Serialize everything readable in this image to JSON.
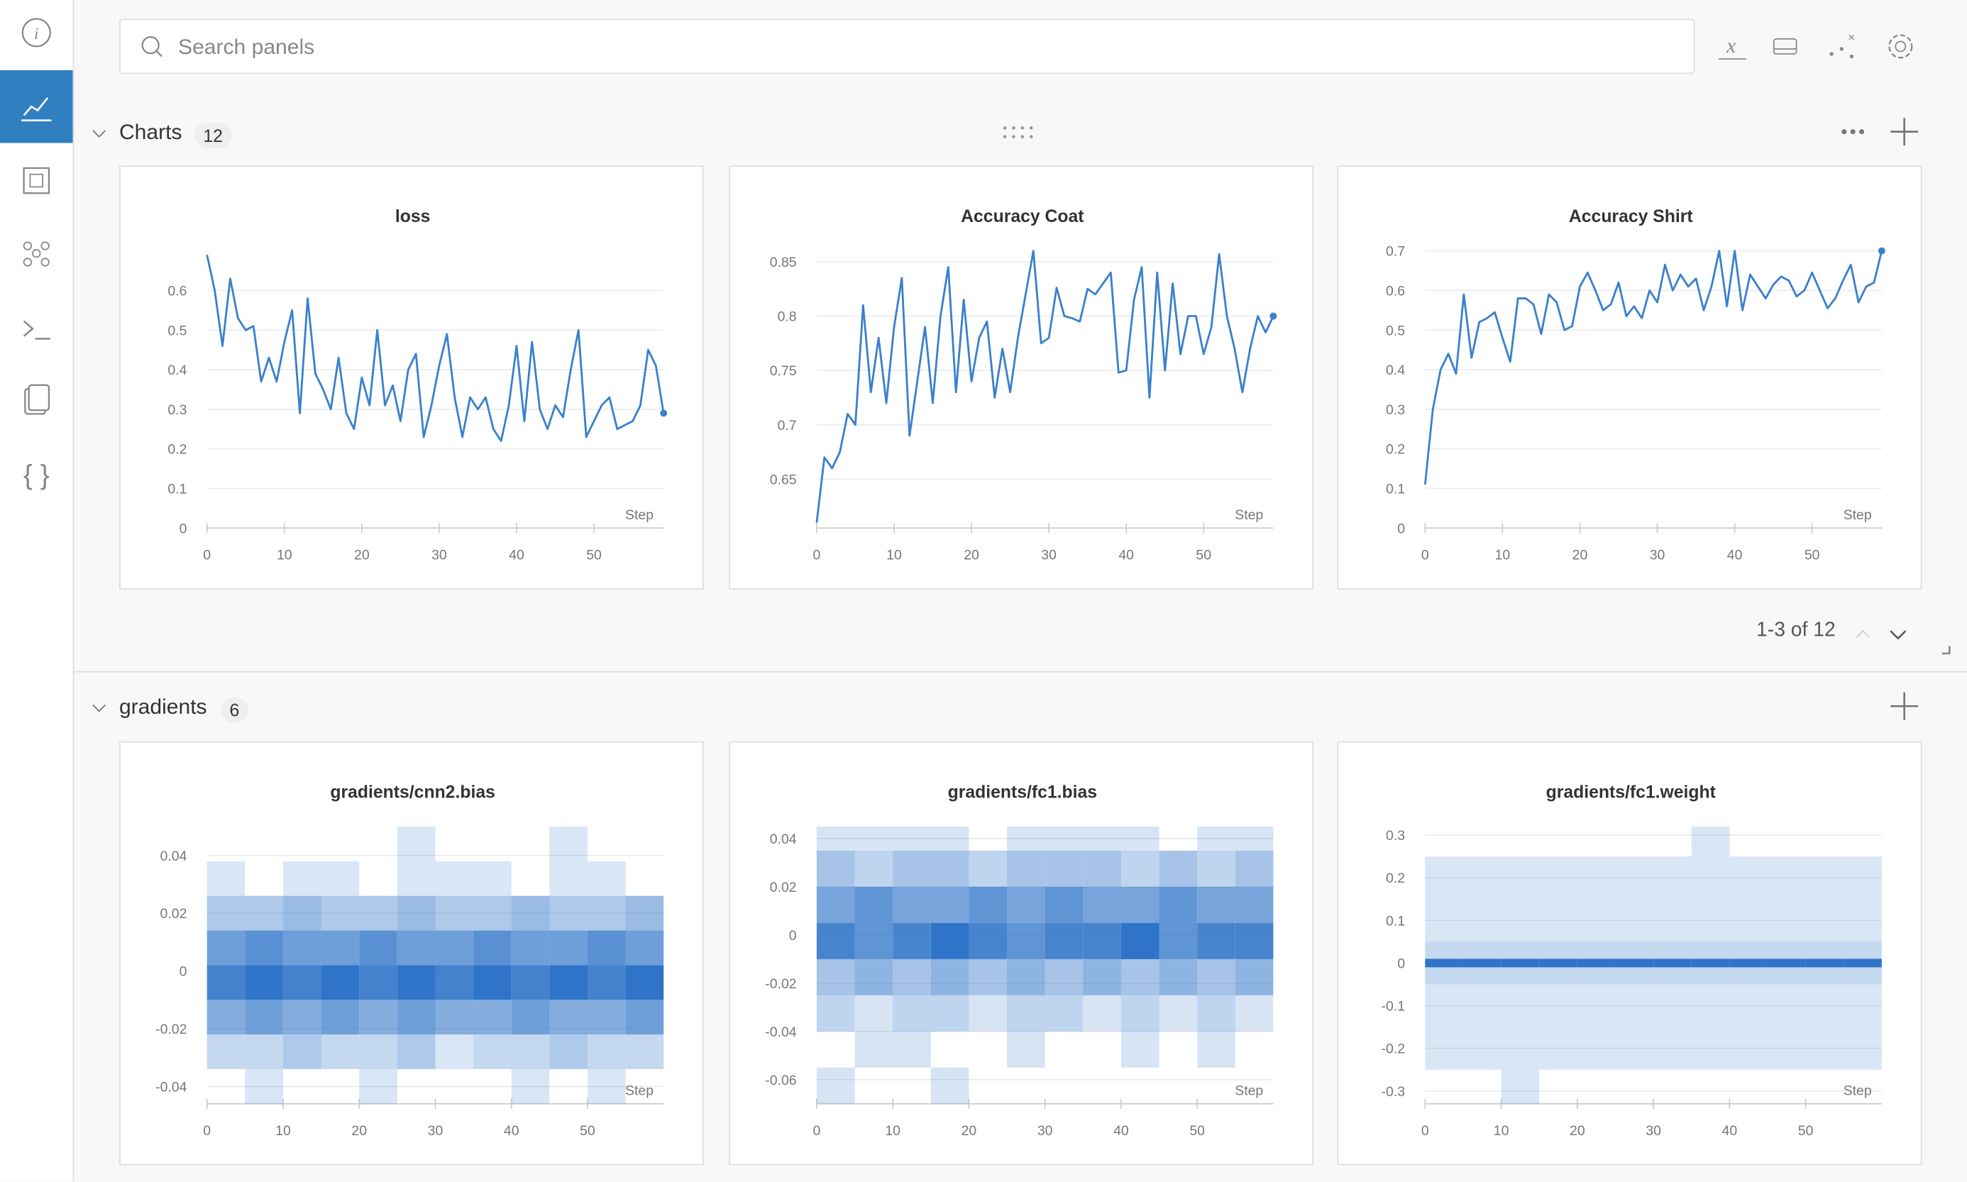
{
  "search_placeholder": "Search panels",
  "sections": [
    {
      "title": "Charts",
      "count": 12,
      "pagination": "1-3 of 12"
    },
    {
      "title": "gradients",
      "count": 6
    }
  ],
  "chart_data": [
    {
      "type": "line",
      "title": "loss",
      "x_label": "Step",
      "color": "#3a80cc",
      "grid": true,
      "x": [
        0,
        1,
        2,
        3,
        4,
        5,
        6,
        7,
        8,
        9,
        10,
        11,
        12,
        13,
        14,
        15,
        16,
        17,
        18,
        19,
        20,
        21,
        22,
        23,
        24,
        25,
        26,
        27,
        28,
        29,
        30,
        31,
        32,
        33,
        34,
        35,
        36,
        37,
        38,
        39,
        40,
        41,
        42,
        43,
        44,
        45,
        46,
        47,
        48,
        49,
        50,
        51,
        52,
        53,
        54,
        55,
        56,
        57,
        58,
        59
      ],
      "values": [
        0.69,
        0.6,
        0.46,
        0.63,
        0.53,
        0.5,
        0.51,
        0.37,
        0.43,
        0.37,
        0.47,
        0.55,
        0.29,
        0.58,
        0.39,
        0.35,
        0.3,
        0.43,
        0.29,
        0.25,
        0.38,
        0.31,
        0.5,
        0.31,
        0.36,
        0.27,
        0.4,
        0.44,
        0.23,
        0.31,
        0.41,
        0.49,
        0.33,
        0.23,
        0.33,
        0.3,
        0.33,
        0.25,
        0.22,
        0.31,
        0.46,
        0.27,
        0.47,
        0.3,
        0.25,
        0.31,
        0.28,
        0.4,
        0.5,
        0.23,
        0.27,
        0.31,
        0.33,
        0.25,
        0.26,
        0.27,
        0.31,
        0.45,
        0.41,
        0.29
      ],
      "xlim": [
        0,
        59
      ],
      "xticks": [
        0,
        10,
        20,
        30,
        40,
        50
      ],
      "ylim": [
        0,
        0.7
      ],
      "yticks": [
        0,
        0.1,
        0.2,
        0.3,
        0.4,
        0.5,
        0.6
      ]
    },
    {
      "type": "line",
      "title": "Accuracy Coat",
      "x_label": "Step",
      "color": "#3a80cc",
      "grid": true,
      "x": [
        0,
        1,
        2,
        3,
        4,
        5,
        6,
        7,
        8,
        9,
        10,
        11,
        12,
        13,
        14,
        15,
        16,
        17,
        18,
        19,
        20,
        21,
        22,
        23,
        24,
        25,
        26,
        27,
        28,
        29,
        30,
        31,
        32,
        33,
        34,
        35,
        36,
        37,
        38,
        39,
        40,
        41,
        42,
        43,
        44,
        45,
        46,
        47,
        48,
        49,
        50,
        51,
        52,
        53,
        54,
        55,
        56,
        57,
        58,
        59
      ],
      "values": [
        0.61,
        0.67,
        0.66,
        0.675,
        0.71,
        0.7,
        0.81,
        0.73,
        0.78,
        0.72,
        0.79,
        0.835,
        0.69,
        0.74,
        0.79,
        0.72,
        0.8,
        0.845,
        0.73,
        0.815,
        0.74,
        0.78,
        0.795,
        0.725,
        0.77,
        0.73,
        0.78,
        0.82,
        0.86,
        0.775,
        0.78,
        0.826,
        0.8,
        0.798,
        0.795,
        0.825,
        0.82,
        0.83,
        0.84,
        0.748,
        0.75,
        0.815,
        0.845,
        0.725,
        0.84,
        0.75,
        0.83,
        0.765,
        0.8,
        0.8,
        0.765,
        0.79,
        0.857,
        0.8,
        0.77,
        0.73,
        0.77,
        0.8,
        0.785,
        0.8
      ],
      "xlim": [
        0,
        59
      ],
      "xticks": [
        0,
        10,
        20,
        30,
        40,
        50
      ],
      "ylim": [
        0.605,
        0.86
      ],
      "yticks": [
        0.65,
        0.7,
        0.75,
        0.8,
        0.85
      ]
    },
    {
      "type": "line",
      "title": "Accuracy Shirt",
      "x_label": "Step",
      "color": "#3a80cc",
      "grid": true,
      "x": [
        0,
        1,
        2,
        3,
        4,
        5,
        6,
        7,
        8,
        9,
        10,
        11,
        12,
        13,
        14,
        15,
        16,
        17,
        18,
        19,
        20,
        21,
        22,
        23,
        24,
        25,
        26,
        27,
        28,
        29,
        30,
        31,
        32,
        33,
        34,
        35,
        36,
        37,
        38,
        39,
        40,
        41,
        42,
        43,
        44,
        45,
        46,
        47,
        48,
        49,
        50,
        51,
        52,
        53,
        54,
        55,
        56,
        57,
        58,
        59
      ],
      "values": [
        0.11,
        0.3,
        0.4,
        0.44,
        0.39,
        0.59,
        0.43,
        0.52,
        0.53,
        0.545,
        0.48,
        0.42,
        0.58,
        0.58,
        0.565,
        0.49,
        0.59,
        0.57,
        0.5,
        0.51,
        0.61,
        0.645,
        0.6,
        0.55,
        0.565,
        0.62,
        0.535,
        0.56,
        0.53,
        0.6,
        0.57,
        0.665,
        0.6,
        0.64,
        0.61,
        0.63,
        0.55,
        0.61,
        0.7,
        0.56,
        0.7,
        0.55,
        0.64,
        0.61,
        0.58,
        0.615,
        0.635,
        0.625,
        0.585,
        0.6,
        0.645,
        0.6,
        0.555,
        0.58,
        0.625,
        0.665,
        0.57,
        0.61,
        0.62,
        0.7
      ],
      "xlim": [
        0,
        59
      ],
      "xticks": [
        0,
        10,
        20,
        30,
        40,
        50
      ],
      "ylim": [
        0,
        0.7
      ],
      "yticks": [
        0,
        0.1,
        0.2,
        0.3,
        0.4,
        0.5,
        0.6,
        0.7
      ]
    },
    {
      "type": "heatmap",
      "title": "gradients/cnn2.bias",
      "x_label": "Step",
      "color": "#2f74c8",
      "grid": true,
      "x_edges": [
        0,
        5,
        10,
        15,
        20,
        25,
        30,
        35,
        40,
        45,
        50,
        55,
        60
      ],
      "y_edges": [
        -0.046,
        -0.034,
        -0.022,
        -0.01,
        0.002,
        0.014,
        0.026,
        0.038,
        0.05
      ],
      "counts": [
        [
          0,
          1,
          0,
          0,
          1,
          0,
          0,
          0,
          1,
          0,
          1,
          0
        ],
        [
          2,
          2,
          3,
          2,
          2,
          3,
          1,
          2,
          2,
          3,
          2,
          2
        ],
        [
          5,
          6,
          5,
          6,
          5,
          6,
          5,
          5,
          6,
          5,
          5,
          6
        ],
        [
          8,
          9,
          8,
          9,
          8,
          9,
          8,
          9,
          8,
          9,
          8,
          9
        ],
        [
          6,
          7,
          6,
          6,
          7,
          6,
          6,
          7,
          6,
          6,
          7,
          6
        ],
        [
          3,
          3,
          4,
          3,
          3,
          4,
          3,
          3,
          4,
          3,
          3,
          4
        ],
        [
          1,
          0,
          1,
          1,
          0,
          1,
          1,
          1,
          0,
          1,
          1,
          0
        ],
        [
          0,
          0,
          0,
          0,
          0,
          1,
          0,
          0,
          0,
          1,
          0,
          0
        ]
      ],
      "xlim": [
        0,
        60
      ],
      "xticks": [
        0,
        10,
        20,
        30,
        40,
        50
      ],
      "ylim": [
        -0.046,
        0.05
      ],
      "yticks": [
        -0.04,
        -0.02,
        0,
        0.02,
        0.04
      ]
    },
    {
      "type": "heatmap",
      "title": "gradients/fc1.bias",
      "x_label": "Step",
      "color": "#2f74c8",
      "grid": true,
      "x_edges": [
        0,
        5,
        10,
        15,
        20,
        25,
        30,
        35,
        40,
        45,
        50,
        55,
        60
      ],
      "y_edges": [
        -0.07,
        -0.055,
        -0.04,
        -0.025,
        -0.01,
        0.005,
        0.02,
        0.035,
        0.045
      ],
      "counts": [
        [
          1,
          0,
          0,
          1,
          0,
          0,
          0,
          0,
          0,
          0,
          0,
          0
        ],
        [
          0,
          1,
          1,
          0,
          0,
          1,
          0,
          0,
          1,
          0,
          1,
          0
        ],
        [
          2,
          1,
          2,
          2,
          1,
          2,
          2,
          1,
          2,
          1,
          2,
          1
        ],
        [
          3,
          4,
          3,
          4,
          3,
          4,
          3,
          4,
          3,
          4,
          3,
          4
        ],
        [
          7,
          6,
          7,
          8,
          7,
          6,
          7,
          7,
          8,
          6,
          7,
          7
        ],
        [
          5,
          6,
          5,
          5,
          6,
          5,
          6,
          5,
          5,
          6,
          5,
          5
        ],
        [
          3,
          2,
          3,
          3,
          2,
          3,
          3,
          3,
          2,
          3,
          2,
          3
        ],
        [
          1,
          1,
          1,
          1,
          0,
          1,
          1,
          1,
          1,
          0,
          1,
          1
        ]
      ],
      "xlim": [
        0,
        60
      ],
      "xticks": [
        0,
        10,
        20,
        30,
        40,
        50
      ],
      "ylim": [
        -0.07,
        0.045
      ],
      "yticks": [
        -0.06,
        -0.04,
        -0.02,
        0,
        0.02,
        0.04
      ]
    },
    {
      "type": "heatmap",
      "title": "gradients/fc1.weight",
      "x_label": "Step",
      "color": "#2f74c8",
      "grid": true,
      "x_edges": [
        0,
        5,
        10,
        15,
        20,
        25,
        30,
        35,
        40,
        45,
        50,
        55,
        60
      ],
      "y_edges": [
        -0.33,
        -0.25,
        -0.15,
        -0.05,
        -0.01,
        0.01,
        0.05,
        0.15,
        0.25,
        0.32
      ],
      "counts": [
        [
          0,
          0,
          1,
          0,
          0,
          0,
          0,
          0,
          0,
          0,
          0,
          0
        ],
        [
          1,
          1,
          1,
          1,
          1,
          1,
          1,
          1,
          1,
          1,
          1,
          1
        ],
        [
          1,
          1,
          1,
          1,
          1,
          1,
          1,
          1,
          1,
          1,
          1,
          1
        ],
        [
          2,
          2,
          2,
          2,
          2,
          2,
          2,
          2,
          2,
          2,
          2,
          2
        ],
        [
          9,
          9,
          9,
          9,
          9,
          9,
          9,
          9,
          9,
          9,
          9,
          9
        ],
        [
          2,
          2,
          2,
          2,
          2,
          2,
          2,
          2,
          2,
          2,
          2,
          2
        ],
        [
          1,
          1,
          1,
          1,
          1,
          1,
          1,
          1,
          1,
          1,
          1,
          1
        ],
        [
          1,
          1,
          1,
          1,
          1,
          1,
          1,
          1,
          1,
          1,
          1,
          1
        ],
        [
          0,
          0,
          0,
          0,
          0,
          0,
          0,
          1,
          0,
          0,
          0,
          0
        ]
      ],
      "xlim": [
        0,
        60
      ],
      "xticks": [
        0,
        10,
        20,
        30,
        40,
        50
      ],
      "ylim": [
        -0.33,
        0.32
      ],
      "yticks": [
        -0.3,
        -0.2,
        -0.1,
        0,
        0.1,
        0.2,
        0.3
      ]
    }
  ]
}
